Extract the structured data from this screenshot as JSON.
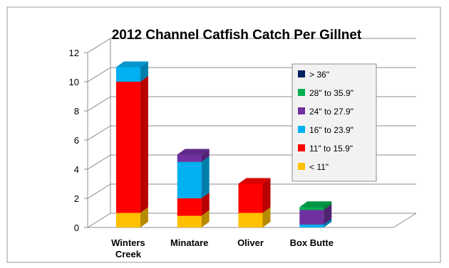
{
  "chart_data": {
    "type": "bar",
    "stacked": true,
    "style": "3d",
    "title": "2012 Channel Catfish Catch  Per Gillnet",
    "categories": [
      [
        "Winters",
        "Creek"
      ],
      [
        "Minatare"
      ],
      [
        "Oliver"
      ],
      [
        "Box Butte"
      ]
    ],
    "ylim": [
      0,
      12
    ],
    "yticks": [
      0,
      2,
      4,
      6,
      8,
      10,
      12
    ],
    "grid": true,
    "legend_position": "right",
    "series": [
      {
        "name": "< 11\"",
        "color": "#FFC000",
        "values": [
          1.0,
          0.8,
          1.0,
          0.0
        ]
      },
      {
        "name": "11\" to 15.9\"",
        "color": "#FF0000",
        "values": [
          9.0,
          1.2,
          2.0,
          0.0
        ]
      },
      {
        "name": "16\" to 23.9\"",
        "color": "#00B0F0",
        "values": [
          1.0,
          2.5,
          0.0,
          0.2
        ]
      },
      {
        "name": "24\" to 27.9\"",
        "color": "#7030A0",
        "values": [
          0.0,
          0.5,
          0.0,
          1.0
        ]
      },
      {
        "name": "28\" to 35.9\"",
        "color": "#00B050",
        "values": [
          0.0,
          0.0,
          0.0,
          0.2
        ]
      },
      {
        "name": "> 36\"",
        "color": "#002060",
        "values": [
          0.0,
          0.0,
          0.0,
          0.0
        ]
      }
    ]
  }
}
